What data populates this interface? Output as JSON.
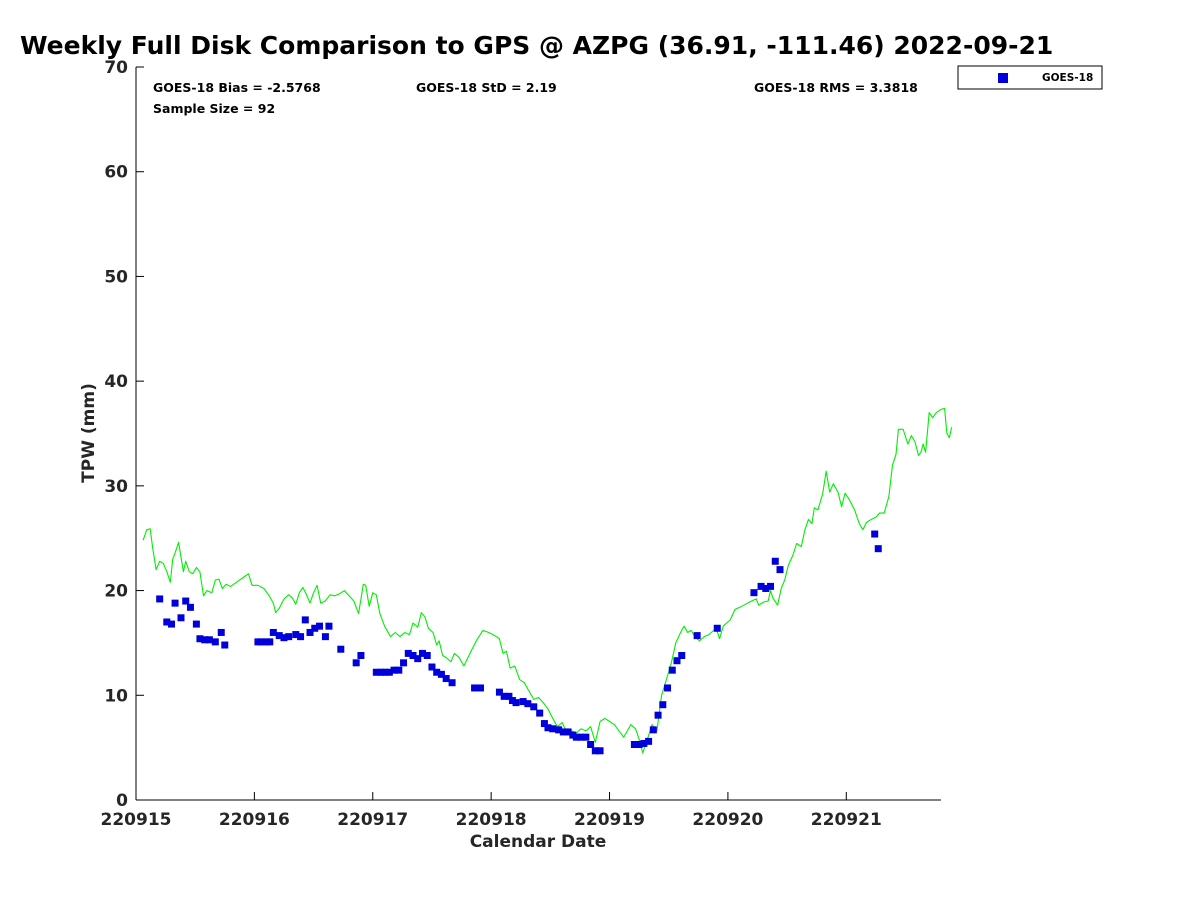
{
  "chart_data": {
    "type": "scatter",
    "title": "Weekly Full Disk Comparison to GPS @ AZPG (36.91, -111.46) 2022-09-21",
    "xlabel": "Calendar Date",
    "ylabel": "TPW (mm)",
    "xlim": [
      0,
      6.8
    ],
    "ylim": [
      0,
      70
    ],
    "x_unit": "days since 220915",
    "x_ticks": [
      {
        "value": 0,
        "label": "220915"
      },
      {
        "value": 1,
        "label": "220916"
      },
      {
        "value": 2,
        "label": "220917"
      },
      {
        "value": 3,
        "label": "220918"
      },
      {
        "value": 4,
        "label": "220919"
      },
      {
        "value": 5,
        "label": "220920"
      },
      {
        "value": 6,
        "label": "220921"
      }
    ],
    "y_ticks": [
      {
        "value": 0,
        "label": "0"
      },
      {
        "value": 10,
        "label": "10"
      },
      {
        "value": 20,
        "label": "20"
      },
      {
        "value": 30,
        "label": "30"
      },
      {
        "value": 40,
        "label": "40"
      },
      {
        "value": 50,
        "label": "50"
      },
      {
        "value": 60,
        "label": "60"
      },
      {
        "value": 70,
        "label": "70"
      }
    ],
    "stats": {
      "bias": "GOES-18 Bias = -2.5768",
      "std": "GOES-18 StD = 2.19",
      "rms": "GOES-18 RMS = 3.3818",
      "sample": "Sample Size = 92"
    },
    "legend": [
      {
        "label": "GOES-18",
        "color": "#0000dd",
        "marker": "square"
      }
    ],
    "legend_position": "outside top-right",
    "series": [
      {
        "name": "GOES-18",
        "color": "#0000dd",
        "marker": "square",
        "points": [
          [
            0.2,
            19.2
          ],
          [
            0.26,
            17.0
          ],
          [
            0.3,
            16.8
          ],
          [
            0.33,
            18.8
          ],
          [
            0.38,
            17.4
          ],
          [
            0.42,
            19.0
          ],
          [
            0.46,
            18.4
          ],
          [
            0.51,
            16.8
          ],
          [
            0.54,
            15.4
          ],
          [
            0.58,
            15.3
          ],
          [
            0.62,
            15.3
          ],
          [
            0.67,
            15.1
          ],
          [
            0.72,
            16.0
          ],
          [
            0.75,
            14.8
          ],
          [
            1.03,
            15.1
          ],
          [
            1.06,
            15.1
          ],
          [
            1.1,
            15.1
          ],
          [
            1.13,
            15.1
          ],
          [
            1.16,
            16.0
          ],
          [
            1.21,
            15.7
          ],
          [
            1.25,
            15.5
          ],
          [
            1.29,
            15.6
          ],
          [
            1.35,
            15.8
          ],
          [
            1.39,
            15.6
          ],
          [
            1.43,
            17.2
          ],
          [
            1.47,
            16.0
          ],
          [
            1.51,
            16.4
          ],
          [
            1.55,
            16.6
          ],
          [
            1.6,
            15.6
          ],
          [
            1.63,
            16.6
          ],
          [
            1.73,
            14.4
          ],
          [
            1.86,
            13.1
          ],
          [
            1.9,
            13.8
          ],
          [
            2.03,
            12.2
          ],
          [
            2.07,
            12.2
          ],
          [
            2.1,
            12.2
          ],
          [
            2.14,
            12.2
          ],
          [
            2.18,
            12.4
          ],
          [
            2.22,
            12.4
          ],
          [
            2.26,
            13.1
          ],
          [
            2.3,
            14.0
          ],
          [
            2.34,
            13.8
          ],
          [
            2.38,
            13.5
          ],
          [
            2.42,
            14.0
          ],
          [
            2.46,
            13.8
          ],
          [
            2.5,
            12.7
          ],
          [
            2.54,
            12.2
          ],
          [
            2.58,
            12.0
          ],
          [
            2.62,
            11.6
          ],
          [
            2.67,
            11.2
          ],
          [
            2.86,
            10.7
          ],
          [
            2.91,
            10.7
          ],
          [
            3.07,
            10.3
          ],
          [
            3.11,
            9.9
          ],
          [
            3.15,
            9.9
          ],
          [
            3.18,
            9.5
          ],
          [
            3.21,
            9.3
          ],
          [
            3.27,
            9.4
          ],
          [
            3.31,
            9.2
          ],
          [
            3.36,
            8.9
          ],
          [
            3.41,
            8.3
          ],
          [
            3.45,
            7.3
          ],
          [
            3.48,
            6.9
          ],
          [
            3.52,
            6.8
          ],
          [
            3.57,
            6.7
          ],
          [
            3.61,
            6.5
          ],
          [
            3.65,
            6.5
          ],
          [
            3.69,
            6.2
          ],
          [
            3.72,
            6.0
          ],
          [
            3.76,
            6.0
          ],
          [
            3.8,
            6.0
          ],
          [
            3.84,
            5.3
          ],
          [
            3.88,
            4.7
          ],
          [
            3.92,
            4.7
          ],
          [
            4.21,
            5.3
          ],
          [
            4.25,
            5.3
          ],
          [
            4.29,
            5.4
          ],
          [
            4.33,
            5.6
          ],
          [
            4.37,
            6.7
          ],
          [
            4.41,
            8.1
          ],
          [
            4.45,
            9.1
          ],
          [
            4.49,
            10.7
          ],
          [
            4.53,
            12.4
          ],
          [
            4.57,
            13.3
          ],
          [
            4.61,
            13.8
          ],
          [
            4.74,
            15.7
          ],
          [
            4.91,
            16.4
          ],
          [
            5.22,
            19.8
          ],
          [
            5.28,
            20.4
          ],
          [
            5.32,
            20.2
          ],
          [
            5.36,
            20.4
          ],
          [
            5.4,
            22.8
          ],
          [
            5.44,
            22.0
          ],
          [
            6.24,
            25.4
          ],
          [
            6.27,
            24.0
          ]
        ]
      },
      {
        "name": "GPS",
        "color": "#00ee00",
        "line": true,
        "points": [
          [
            0.06,
            24.8
          ],
          [
            0.09,
            25.8
          ],
          [
            0.12,
            25.9
          ],
          [
            0.14,
            24.1
          ],
          [
            0.17,
            22.0
          ],
          [
            0.2,
            22.8
          ],
          [
            0.23,
            22.6
          ],
          [
            0.26,
            21.8
          ],
          [
            0.29,
            20.8
          ],
          [
            0.31,
            23.0
          ],
          [
            0.33,
            23.6
          ],
          [
            0.36,
            24.6
          ],
          [
            0.38,
            23.2
          ],
          [
            0.4,
            21.8
          ],
          [
            0.42,
            22.8
          ],
          [
            0.45,
            21.8
          ],
          [
            0.48,
            21.6
          ],
          [
            0.51,
            22.2
          ],
          [
            0.54,
            21.8
          ],
          [
            0.57,
            19.5
          ],
          [
            0.6,
            20.0
          ],
          [
            0.64,
            19.8
          ],
          [
            0.67,
            21.0
          ],
          [
            0.7,
            21.1
          ],
          [
            0.73,
            20.2
          ],
          [
            0.76,
            20.6
          ],
          [
            0.8,
            20.4
          ],
          [
            0.85,
            20.8
          ],
          [
            0.9,
            21.2
          ],
          [
            0.95,
            21.6
          ],
          [
            0.98,
            20.5
          ],
          [
            1.03,
            20.5
          ],
          [
            1.08,
            20.2
          ],
          [
            1.12,
            19.6
          ],
          [
            1.16,
            18.8
          ],
          [
            1.18,
            17.9
          ],
          [
            1.21,
            18.3
          ],
          [
            1.25,
            19.2
          ],
          [
            1.29,
            19.6
          ],
          [
            1.32,
            19.3
          ],
          [
            1.35,
            18.7
          ],
          [
            1.38,
            19.8
          ],
          [
            1.41,
            20.3
          ],
          [
            1.44,
            19.6
          ],
          [
            1.47,
            18.8
          ],
          [
            1.5,
            19.8
          ],
          [
            1.53,
            20.5
          ],
          [
            1.56,
            18.8
          ],
          [
            1.6,
            19.0
          ],
          [
            1.64,
            19.6
          ],
          [
            1.68,
            19.5
          ],
          [
            1.72,
            19.7
          ],
          [
            1.76,
            20.0
          ],
          [
            1.8,
            19.5
          ],
          [
            1.84,
            19.0
          ],
          [
            1.88,
            17.8
          ],
          [
            1.92,
            20.6
          ],
          [
            1.94,
            20.5
          ],
          [
            1.97,
            18.5
          ],
          [
            2.0,
            19.8
          ],
          [
            2.03,
            19.6
          ],
          [
            2.06,
            17.8
          ],
          [
            2.1,
            16.6
          ],
          [
            2.15,
            15.6
          ],
          [
            2.19,
            16.0
          ],
          [
            2.23,
            15.6
          ],
          [
            2.27,
            16.0
          ],
          [
            2.31,
            15.8
          ],
          [
            2.34,
            16.9
          ],
          [
            2.38,
            16.5
          ],
          [
            2.41,
            17.9
          ],
          [
            2.44,
            17.5
          ],
          [
            2.47,
            16.4
          ],
          [
            2.51,
            16.0
          ],
          [
            2.54,
            14.8
          ],
          [
            2.56,
            15.2
          ],
          [
            2.59,
            13.8
          ],
          [
            2.62,
            13.6
          ],
          [
            2.66,
            13.2
          ],
          [
            2.69,
            14.0
          ],
          [
            2.73,
            13.6
          ],
          [
            2.77,
            12.8
          ],
          [
            2.83,
            14.2
          ],
          [
            2.88,
            15.3
          ],
          [
            2.93,
            16.2
          ],
          [
            2.98,
            16.0
          ],
          [
            3.03,
            15.7
          ],
          [
            3.07,
            15.4
          ],
          [
            3.1,
            14.0
          ],
          [
            3.13,
            14.2
          ],
          [
            3.16,
            12.6
          ],
          [
            3.2,
            12.8
          ],
          [
            3.24,
            11.5
          ],
          [
            3.28,
            11.2
          ],
          [
            3.32,
            10.4
          ],
          [
            3.36,
            9.6
          ],
          [
            3.4,
            9.8
          ],
          [
            3.44,
            9.3
          ],
          [
            3.48,
            8.7
          ],
          [
            3.52,
            7.8
          ],
          [
            3.56,
            7.0
          ],
          [
            3.6,
            7.4
          ],
          [
            3.64,
            6.4
          ],
          [
            3.68,
            6.6
          ],
          [
            3.72,
            6.4
          ],
          [
            3.76,
            6.8
          ],
          [
            3.8,
            6.6
          ],
          [
            3.84,
            7.0
          ],
          [
            3.88,
            5.5
          ],
          [
            3.92,
            7.5
          ],
          [
            3.96,
            7.8
          ],
          [
            4.0,
            7.5
          ],
          [
            4.04,
            7.2
          ],
          [
            4.08,
            6.6
          ],
          [
            4.12,
            6.0
          ],
          [
            4.15,
            6.6
          ],
          [
            4.18,
            7.2
          ],
          [
            4.22,
            6.8
          ],
          [
            4.25,
            5.8
          ],
          [
            4.28,
            4.5
          ],
          [
            4.32,
            5.8
          ],
          [
            4.36,
            7.2
          ],
          [
            4.4,
            6.6
          ],
          [
            4.44,
            10.0
          ],
          [
            4.48,
            11.5
          ],
          [
            4.52,
            13.0
          ],
          [
            4.56,
            15.0
          ],
          [
            4.6,
            16.0
          ],
          [
            4.63,
            16.6
          ],
          [
            4.66,
            16.0
          ],
          [
            4.69,
            16.2
          ],
          [
            4.72,
            15.6
          ],
          [
            4.76,
            15.2
          ],
          [
            4.8,
            15.6
          ],
          [
            4.84,
            15.8
          ],
          [
            4.88,
            16.2
          ],
          [
            4.9,
            16.4
          ],
          [
            4.93,
            15.4
          ],
          [
            4.96,
            16.6
          ],
          [
            5.02,
            17.2
          ],
          [
            5.06,
            18.2
          ],
          [
            5.1,
            18.4
          ],
          [
            5.15,
            18.7
          ],
          [
            5.2,
            19.0
          ],
          [
            5.24,
            19.2
          ],
          [
            5.26,
            18.6
          ],
          [
            5.3,
            18.9
          ],
          [
            5.34,
            19.0
          ],
          [
            5.36,
            20.0
          ],
          [
            5.38,
            19.3
          ],
          [
            5.42,
            18.6
          ],
          [
            5.45,
            20.2
          ],
          [
            5.48,
            21.0
          ],
          [
            5.51,
            22.4
          ],
          [
            5.55,
            23.4
          ],
          [
            5.58,
            24.5
          ],
          [
            5.62,
            24.2
          ],
          [
            5.65,
            25.8
          ],
          [
            5.68,
            26.8
          ],
          [
            5.71,
            26.4
          ],
          [
            5.73,
            27.9
          ],
          [
            5.76,
            27.7
          ],
          [
            5.8,
            29.2
          ],
          [
            5.83,
            31.4
          ],
          [
            5.86,
            29.4
          ],
          [
            5.89,
            30.2
          ],
          [
            5.93,
            29.4
          ],
          [
            5.96,
            28.0
          ],
          [
            5.99,
            29.3
          ],
          [
            6.03,
            28.6
          ],
          [
            6.07,
            27.7
          ],
          [
            6.11,
            26.4
          ],
          [
            6.14,
            25.8
          ],
          [
            6.17,
            26.5
          ],
          [
            6.21,
            26.8
          ],
          [
            6.25,
            27.0
          ],
          [
            6.28,
            27.4
          ],
          [
            6.32,
            27.4
          ],
          [
            6.36,
            29.0
          ],
          [
            6.39,
            32.0
          ],
          [
            6.42,
            33.0
          ],
          [
            6.44,
            35.4
          ],
          [
            6.48,
            35.4
          ],
          [
            6.52,
            34.0
          ],
          [
            6.55,
            34.8
          ],
          [
            6.58,
            34.2
          ],
          [
            6.61,
            32.9
          ],
          [
            6.63,
            33.2
          ],
          [
            6.65,
            34.0
          ],
          [
            6.67,
            33.2
          ],
          [
            6.7,
            37.0
          ],
          [
            6.73,
            36.5
          ],
          [
            6.76,
            37.0
          ],
          [
            6.8,
            37.3
          ],
          [
            6.83,
            37.4
          ],
          [
            6.85,
            35.0
          ],
          [
            6.87,
            34.6
          ],
          [
            6.89,
            35.6
          ]
        ]
      }
    ]
  }
}
